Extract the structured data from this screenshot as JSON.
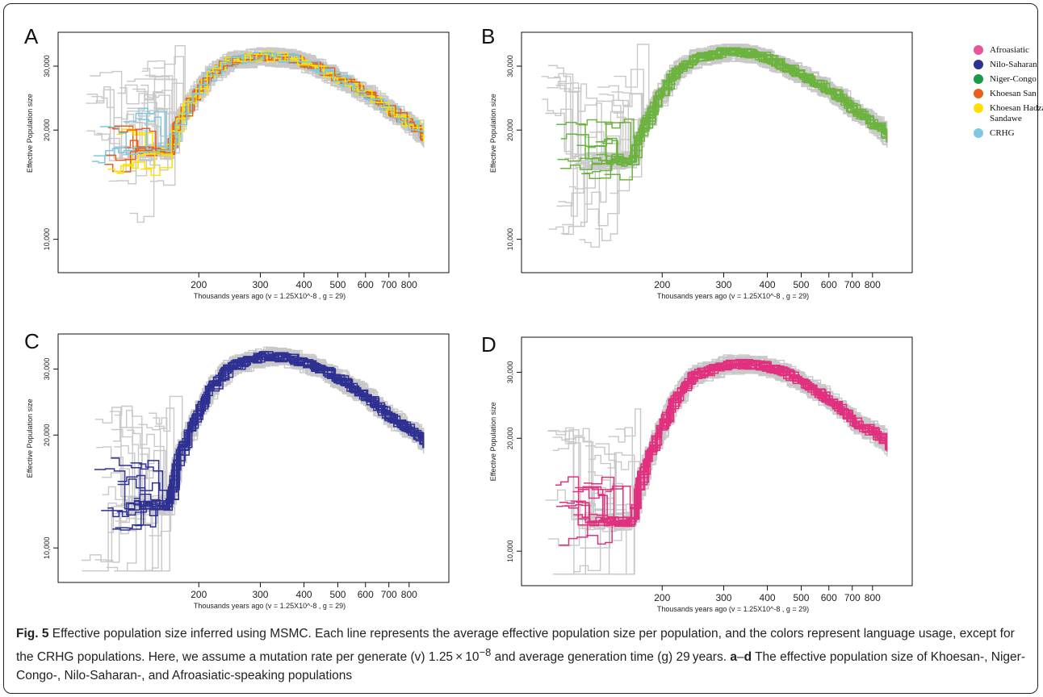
{
  "figure": {
    "caption_label": "Fig. 5",
    "caption_text_1": " Effective population size inferred using MSMC. Each line represents the average effective population size per population, and the colors represent language usage, except for the CRHG populations. Here, we assume a mutation rate per generate (v) 1.25 × 10",
    "caption_exp": "−8",
    "caption_text_2": " and average generation time (g) 29 years. ",
    "caption_panels": "a",
    "caption_dash": "–",
    "caption_panels_end": "d",
    "caption_text_3": " The effective population size of Khoesan-, Niger-Congo-, Nilo-Saharan-, and Afroasiatic-speaking populations"
  },
  "legend": {
    "items": [
      {
        "label": "Afroasiatic",
        "color": "#e8559a"
      },
      {
        "label": "Nilo-Saharan",
        "color": "#2e3192"
      },
      {
        "label": "Niger-Congo",
        "color": "#1a9a4a"
      },
      {
        "label": "Khoesan San",
        "color": "#e8601c"
      },
      {
        "label": "Khoesan Hadza Sandawe",
        "color": "#ffe000"
      },
      {
        "label": "CRHG",
        "color": "#7ec8e3"
      }
    ]
  },
  "chart_data": [
    {
      "panel": "A",
      "type": "line",
      "xlabel": "Thousands years ago (v = 1.25X10^-8 , g = 29)",
      "ylabel": "Effective Population size",
      "x_ticks": [
        200,
        300,
        400,
        500,
        600,
        700,
        800
      ],
      "y_ticks": [
        "10,000",
        "20,000",
        "30,000"
      ],
      "x_scale": "log",
      "y_scale": "log",
      "highlight_colors": [
        "#e8601c",
        "#ffe000",
        "#7ec8e3"
      ],
      "series_shape": [
        [
          160,
          17500
        ],
        [
          170,
          21000
        ],
        [
          190,
          25000
        ],
        [
          210,
          28500
        ],
        [
          240,
          31000
        ],
        [
          300,
          32000
        ],
        [
          360,
          31500
        ],
        [
          420,
          30000
        ],
        [
          500,
          27500
        ],
        [
          600,
          25000
        ],
        [
          700,
          22500
        ],
        [
          800,
          20500
        ],
        [
          880,
          19000
        ]
      ]
    },
    {
      "panel": "B",
      "type": "line",
      "xlabel": "Thousands years ago (v = 1.25X10^-8 , g = 29)",
      "ylabel": "Effective Population size",
      "x_ticks": [
        200,
        300,
        400,
        500,
        600,
        700,
        800
      ],
      "y_ticks": [
        "10,000",
        "20,000",
        "30,000"
      ],
      "x_scale": "log",
      "y_scale": "log",
      "highlight_colors": [
        "#6db33f"
      ],
      "series_shape": [
        [
          160,
          16500
        ],
        [
          170,
          20000
        ],
        [
          190,
          24500
        ],
        [
          210,
          28500
        ],
        [
          240,
          31500
        ],
        [
          300,
          33000
        ],
        [
          360,
          32500
        ],
        [
          420,
          30500
        ],
        [
          500,
          28000
        ],
        [
          600,
          25500
        ],
        [
          700,
          22500
        ],
        [
          800,
          20500
        ],
        [
          880,
          19000
        ]
      ]
    },
    {
      "panel": "C",
      "type": "line",
      "xlabel": "Thousands years ago (v = 1.25X10^-8 , g = 29)",
      "ylabel": "Effective Population size",
      "x_ticks": [
        200,
        300,
        400,
        500,
        600,
        700,
        800
      ],
      "y_ticks": [
        "10,000",
        "20,000",
        "30,000"
      ],
      "x_scale": "log",
      "y_scale": "log",
      "highlight_colors": [
        "#2e3192"
      ],
      "series_shape": [
        [
          160,
          13000
        ],
        [
          170,
          17500
        ],
        [
          190,
          22000
        ],
        [
          210,
          26500
        ],
        [
          240,
          30500
        ],
        [
          300,
          32500
        ],
        [
          360,
          32000
        ],
        [
          420,
          30500
        ],
        [
          500,
          28000
        ],
        [
          600,
          25000
        ],
        [
          700,
          22000
        ],
        [
          800,
          20500
        ],
        [
          880,
          19000
        ]
      ]
    },
    {
      "panel": "D",
      "type": "line",
      "xlabel": "Thousands years ago (v = 1.25X10^-8 , g = 29)",
      "ylabel": "Effective Population size",
      "x_ticks": [
        200,
        300,
        400,
        500,
        600,
        700,
        800
      ],
      "y_ticks": [
        "10,000",
        "20,000",
        "30,000"
      ],
      "x_scale": "log",
      "y_scale": "log",
      "highlight_colors": [
        "#e0307f"
      ],
      "series_shape": [
        [
          160,
          12000
        ],
        [
          170,
          16000
        ],
        [
          190,
          20500
        ],
        [
          210,
          25000
        ],
        [
          240,
          29500
        ],
        [
          300,
          31500
        ],
        [
          360,
          31500
        ],
        [
          420,
          30500
        ],
        [
          500,
          28000
        ],
        [
          600,
          25000
        ],
        [
          700,
          22000
        ],
        [
          800,
          20500
        ],
        [
          880,
          19000
        ]
      ]
    }
  ]
}
